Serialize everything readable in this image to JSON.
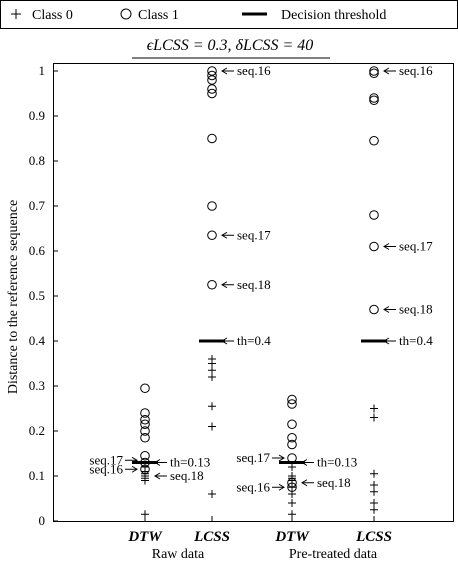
{
  "chart_data": {
    "type": "scatter",
    "title": "ϵLCSS = 0.3,  δLCSS = 40",
    "ylabel": "Distance to the reference sequence",
    "ylim": [
      0,
      1
    ],
    "yticks": [
      0,
      0.1,
      0.2,
      0.3,
      0.4,
      0.5,
      0.6,
      0.7,
      0.8,
      0.9,
      1
    ],
    "ytick_labels": [
      "0",
      "0.1",
      "0.2",
      "0.3",
      "0.4",
      "0.5",
      "0.6",
      "0.7",
      "0.8",
      "0.9",
      "1"
    ],
    "grid": false,
    "legend_position": "top",
    "legend": [
      {
        "label": "Class 0",
        "marker": "plus"
      },
      {
        "label": "Class 1",
        "marker": "circle"
      },
      {
        "label": "Decision threshold",
        "marker": "thick-line"
      }
    ],
    "categories": [
      "DTW",
      "LCSS",
      "DTW",
      "LCSS"
    ],
    "groups": [
      "Raw data",
      "Pre-treated data"
    ],
    "class0": [
      [
        0.015,
        0.09,
        0.095,
        0.1,
        0.105,
        0.11,
        0.12
      ],
      [
        0.06,
        0.21,
        0.255,
        0.32,
        0.335,
        0.35,
        0.36
      ],
      [
        0.015,
        0.04,
        0.06,
        0.075,
        0.09,
        0.095,
        0.1,
        0.12
      ],
      [
        0.025,
        0.04,
        0.065,
        0.08,
        0.105,
        0.23,
        0.25
      ]
    ],
    "class1": [
      [
        0.115,
        0.13,
        0.145,
        0.185,
        0.2,
        0.215,
        0.225,
        0.24,
        0.295
      ],
      [
        0.525,
        0.635,
        0.7,
        0.85,
        0.95,
        0.96,
        0.98,
        0.99,
        1.0
      ],
      [
        0.075,
        0.085,
        0.14,
        0.17,
        0.185,
        0.215,
        0.26,
        0.27
      ],
      [
        0.47,
        0.61,
        0.68,
        0.845,
        0.935,
        0.94,
        0.995,
        1.0
      ]
    ],
    "thresholds": [
      0.13,
      0.4,
      0.13,
      0.4
    ],
    "annotations": [
      {
        "text": "seq.16",
        "cat": 1,
        "y": 1.0,
        "dir": "right"
      },
      {
        "text": "seq.17",
        "cat": 1,
        "y": 0.635,
        "dir": "right"
      },
      {
        "text": "seq.18",
        "cat": 1,
        "y": 0.525,
        "dir": "right"
      },
      {
        "text": "th=0.4",
        "cat": 1,
        "y": 0.4,
        "dir": "right"
      },
      {
        "text": "seq.16",
        "cat": 3,
        "y": 1.0,
        "dir": "right"
      },
      {
        "text": "seq.17",
        "cat": 3,
        "y": 0.61,
        "dir": "right"
      },
      {
        "text": "seq.18",
        "cat": 3,
        "y": 0.47,
        "dir": "right"
      },
      {
        "text": "th=0.4",
        "cat": 3,
        "y": 0.4,
        "dir": "right"
      },
      {
        "text": "seq.17",
        "cat": 0,
        "y": 0.135,
        "dir": "left"
      },
      {
        "text": "seq.16",
        "cat": 0,
        "y": 0.115,
        "dir": "left"
      },
      {
        "text": "th=0.13",
        "cat": 0,
        "y": 0.13,
        "dir": "right"
      },
      {
        "text": "seq.18",
        "cat": 0,
        "y": 0.1,
        "dir": "right"
      },
      {
        "text": "seq.17",
        "cat": 2,
        "y": 0.14,
        "dir": "left"
      },
      {
        "text": "th=0.13",
        "cat": 2,
        "y": 0.13,
        "dir": "right"
      },
      {
        "text": "seq.16",
        "cat": 2,
        "y": 0.075,
        "dir": "left"
      },
      {
        "text": "seq.18",
        "cat": 2,
        "y": 0.085,
        "dir": "right"
      }
    ]
  }
}
